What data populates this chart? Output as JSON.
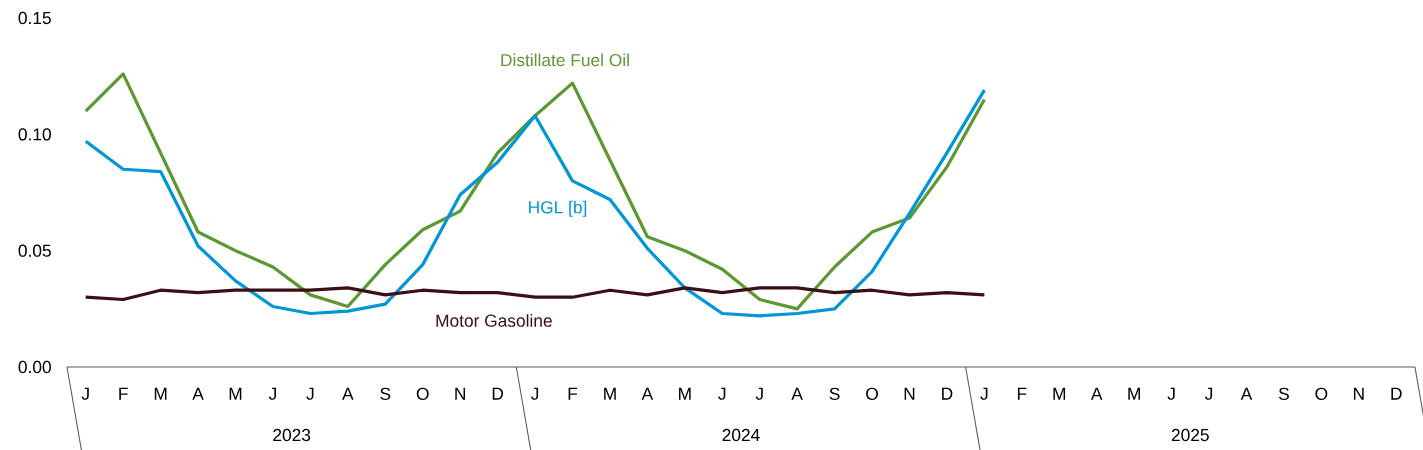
{
  "chart_data": {
    "type": "line",
    "categories": [
      "J",
      "F",
      "M",
      "A",
      "M",
      "J",
      "J",
      "A",
      "S",
      "O",
      "N",
      "D",
      "J",
      "F",
      "M",
      "A",
      "M",
      "J",
      "J",
      "A",
      "S",
      "O",
      "N",
      "D",
      "J",
      "F",
      "M",
      "A",
      "M",
      "J",
      "J",
      "A",
      "S",
      "O",
      "N",
      "D"
    ],
    "series": [
      {
        "name": "Distillate Fuel Oil",
        "color": "#5d9732",
        "values": [
          0.11,
          0.126,
          0.092,
          0.058,
          0.05,
          0.043,
          0.031,
          0.026,
          0.044,
          0.059,
          0.067,
          0.092,
          0.108,
          0.122,
          0.089,
          0.056,
          0.05,
          0.042,
          0.029,
          0.025,
          0.043,
          0.058,
          0.064,
          0.086,
          0.115,
          null,
          null,
          null,
          null,
          null,
          null,
          null,
          null,
          null,
          null,
          null
        ]
      },
      {
        "name": "HGL [b]",
        "color": "#0096d7",
        "values": [
          0.097,
          0.085,
          0.084,
          0.052,
          0.037,
          0.026,
          0.023,
          0.024,
          0.027,
          0.044,
          0.074,
          0.088,
          0.108,
          0.08,
          0.072,
          0.051,
          0.034,
          0.023,
          0.022,
          0.023,
          0.025,
          0.041,
          0.066,
          0.092,
          0.119,
          null,
          null,
          null,
          null,
          null,
          null,
          null,
          null,
          null,
          null,
          null
        ]
      },
      {
        "name": "Motor Gasoline",
        "color": "#3b0f14",
        "values": [
          0.03,
          0.029,
          0.033,
          0.032,
          0.033,
          0.033,
          0.033,
          0.034,
          0.031,
          0.033,
          0.032,
          0.032,
          0.03,
          0.03,
          0.033,
          0.031,
          0.034,
          0.032,
          0.034,
          0.034,
          0.032,
          0.033,
          0.031,
          0.032,
          0.031,
          null,
          null,
          null,
          null,
          null,
          null,
          null,
          null,
          null,
          null,
          null
        ]
      }
    ],
    "ylim": [
      0,
      0.15
    ],
    "yticks": [
      {
        "value": 0,
        "label": "0.00"
      },
      {
        "value": 0.05,
        "label": "0.05"
      },
      {
        "value": 0.1,
        "label": "0.10"
      },
      {
        "value": 0.15,
        "label": "0.15"
      }
    ],
    "annotations": [
      "2023",
      "2024",
      "2025"
    ],
    "grid": false,
    "legend": false,
    "marker": "none",
    "line_style": "solid"
  }
}
